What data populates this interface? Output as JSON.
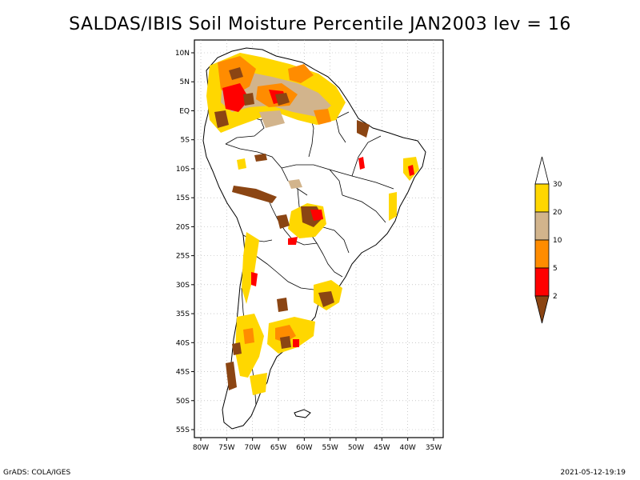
{
  "title": "SALDAS/IBIS Soil Moisture Percentile JAN2003 lev = 16",
  "footer": {
    "left": "GrADS: COLA/IGES",
    "right": "2021-05-12-19:19"
  },
  "map": {
    "lat_ticks": [
      "10N",
      "5N",
      "EQ",
      "5S",
      "10S",
      "15S",
      "20S",
      "25S",
      "30S",
      "35S",
      "40S",
      "45S",
      "50S",
      "55S"
    ],
    "lon_ticks": [
      "80W",
      "75W",
      "70W",
      "65W",
      "60W",
      "55W",
      "50W",
      "45W",
      "40W",
      "35W"
    ],
    "lat_range": [
      -55,
      10
    ],
    "lon_range": [
      -80,
      -35
    ],
    "gridlines": true
  },
  "colorbar": {
    "labels": [
      "30",
      "20",
      "10",
      "5",
      "2"
    ],
    "bins": [
      {
        "color": "#ffffff",
        "range": "> 30"
      },
      {
        "color": "#ffd700",
        "range": "20-30"
      },
      {
        "color": "#d2b48c",
        "range": "10-20"
      },
      {
        "color": "#ff8c00",
        "range": "5-10"
      },
      {
        "color": "#ff0000",
        "range": "2-5"
      },
      {
        "color": "#8b4513",
        "range": "< 2"
      }
    ]
  }
}
